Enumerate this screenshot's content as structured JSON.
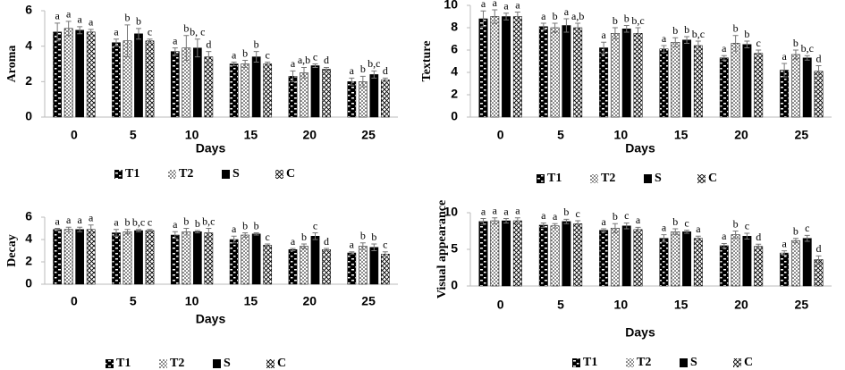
{
  "chart_data": [
    {
      "type": "bar",
      "ylabel": "Aroma",
      "xlabel": "Days",
      "categories": [
        "0",
        "5",
        "10",
        "15",
        "20",
        "25"
      ],
      "ylim": [
        0,
        6
      ],
      "yticks": [
        0,
        2,
        4,
        6
      ],
      "series": [
        {
          "name": "T1",
          "pattern": "brick",
          "values": [
            4.8,
            4.2,
            3.7,
            3.0,
            2.3,
            2.0
          ],
          "errors": [
            0.5,
            0.2,
            0.2,
            0.1,
            0.3,
            0.2
          ],
          "letters": [
            "a",
            "a",
            "a",
            "a",
            "a",
            "a"
          ]
        },
        {
          "name": "T2",
          "pattern": "dots",
          "values": [
            5.0,
            4.3,
            3.9,
            3.0,
            2.5,
            2.0
          ],
          "errors": [
            0.4,
            0.9,
            0.7,
            0.2,
            0.3,
            0.3
          ],
          "letters": [
            "a",
            "b",
            "b",
            "b",
            "a,b",
            "b"
          ]
        },
        {
          "name": "S",
          "pattern": "solid",
          "values": [
            4.9,
            4.7,
            3.9,
            3.4,
            2.9,
            2.4
          ],
          "errors": [
            0.2,
            0.3,
            0.5,
            0.3,
            0.1,
            0.2
          ],
          "letters": [
            "a",
            "b",
            "b, c",
            "b",
            "c",
            "b,c"
          ]
        },
        {
          "name": "C",
          "pattern": "crosshatch",
          "values": [
            4.8,
            4.3,
            3.4,
            3.0,
            2.7,
            2.1
          ],
          "errors": [
            0.15,
            0.1,
            0.3,
            0.1,
            0.1,
            0.1
          ],
          "letters": [
            "a",
            "c",
            "d",
            "c",
            "d",
            "d"
          ]
        }
      ]
    },
    {
      "type": "bar",
      "ylabel": "Texture",
      "xlabel": "Days",
      "categories": [
        "0",
        "5",
        "10",
        "15",
        "20",
        "25"
      ],
      "ylim": [
        0,
        10
      ],
      "yticks": [
        0,
        2,
        4,
        6,
        8,
        10
      ],
      "series": [
        {
          "name": "T1",
          "pattern": "brick",
          "values": [
            8.8,
            8.1,
            6.2,
            6.1,
            5.3,
            4.2
          ],
          "errors": [
            0.7,
            0.3,
            0.5,
            0.3,
            0.2,
            0.6
          ],
          "letters": [
            "a",
            "a",
            "a",
            "a",
            "a",
            "a"
          ]
        },
        {
          "name": "T2",
          "pattern": "dots",
          "values": [
            9.0,
            8.0,
            7.5,
            6.7,
            6.6,
            5.6
          ],
          "errors": [
            0.6,
            0.4,
            0.5,
            0.4,
            0.7,
            0.4
          ],
          "letters": [
            "a",
            "b",
            "b",
            "b",
            "b",
            "b"
          ]
        },
        {
          "name": "S",
          "pattern": "solid",
          "values": [
            9.0,
            8.2,
            7.9,
            6.9,
            6.5,
            5.3
          ],
          "errors": [
            0.3,
            0.6,
            0.3,
            0.3,
            0.3,
            0.2
          ],
          "letters": [
            "a",
            "a",
            "b",
            "b",
            "b",
            "b,c"
          ]
        },
        {
          "name": "C",
          "pattern": "crosshatch",
          "values": [
            9.0,
            8.0,
            7.5,
            6.4,
            5.7,
            4.1
          ],
          "errors": [
            0.4,
            0.4,
            0.5,
            0.4,
            0.3,
            0.5
          ],
          "letters": [
            "a",
            "a,b",
            "b,c",
            "b,c",
            "c",
            "d"
          ]
        }
      ]
    },
    {
      "type": "bar",
      "ylabel": "Decay",
      "xlabel": "Days",
      "categories": [
        "0",
        "5",
        "10",
        "15",
        "20",
        "25"
      ],
      "ylim": [
        0,
        6
      ],
      "yticks": [
        0,
        2,
        4,
        6
      ],
      "series": [
        {
          "name": "T1",
          "pattern": "brick",
          "values": [
            4.9,
            4.6,
            4.4,
            4.0,
            3.1,
            2.8
          ],
          "errors": [
            0.1,
            0.3,
            0.3,
            0.3,
            0.1,
            0.1
          ],
          "letters": [
            "a",
            "a",
            "a",
            "a",
            "a",
            "a"
          ]
        },
        {
          "name": "T2",
          "pattern": "dots",
          "values": [
            4.9,
            4.7,
            4.7,
            4.4,
            3.4,
            3.4
          ],
          "errors": [
            0.2,
            0.2,
            0.3,
            0.2,
            0.2,
            0.3
          ],
          "letters": [
            "a",
            "b",
            "b",
            "b",
            "b",
            "b"
          ]
        },
        {
          "name": "S",
          "pattern": "solid",
          "values": [
            4.9,
            4.8,
            4.7,
            4.5,
            4.3,
            3.3
          ],
          "errors": [
            0.2,
            0.1,
            0.1,
            0.1,
            0.3,
            0.3
          ],
          "letters": [
            "a",
            "b,c",
            "b",
            "b",
            "c",
            "b"
          ]
        },
        {
          "name": "C",
          "pattern": "crosshatch",
          "values": [
            4.9,
            4.8,
            4.6,
            3.5,
            3.1,
            2.7
          ],
          "errors": [
            0.4,
            0.1,
            0.4,
            0.1,
            0.1,
            0.2
          ],
          "letters": [
            "a",
            "c",
            "b,c",
            "c",
            "d",
            "c"
          ]
        }
      ]
    },
    {
      "type": "bar",
      "ylabel": "Visual appearance",
      "xlabel": "Days",
      "categories": [
        "0",
        "5",
        "10",
        "15",
        "20",
        "25"
      ],
      "ylim": [
        0,
        10
      ],
      "yticks": [
        0,
        5,
        10
      ],
      "series": [
        {
          "name": "T1",
          "pattern": "brick",
          "values": [
            8.8,
            8.3,
            7.6,
            6.5,
            5.5,
            4.5
          ],
          "errors": [
            0.4,
            0.3,
            0.2,
            0.5,
            0.3,
            0.3
          ],
          "letters": [
            "a",
            "a",
            "a",
            "a",
            "a",
            "a"
          ]
        },
        {
          "name": "T2",
          "pattern": "dots",
          "values": [
            8.9,
            8.2,
            7.9,
            7.4,
            7.0,
            6.2
          ],
          "errors": [
            0.4,
            0.3,
            0.6,
            0.4,
            0.5,
            0.3
          ],
          "letters": [
            "a",
            "a",
            "b",
            "b",
            "b",
            "b"
          ]
        },
        {
          "name": "S",
          "pattern": "solid",
          "values": [
            8.9,
            8.8,
            8.2,
            7.4,
            6.8,
            6.5
          ],
          "errors": [
            0.3,
            0.3,
            0.4,
            0.2,
            0.4,
            0.4
          ],
          "letters": [
            "a",
            "b",
            "c",
            "c",
            "c",
            "c"
          ]
        },
        {
          "name": "C",
          "pattern": "crosshatch",
          "values": [
            8.9,
            8.5,
            7.7,
            6.5,
            5.4,
            3.6
          ],
          "errors": [
            0.4,
            0.4,
            0.3,
            0.3,
            0.3,
            0.5
          ],
          "letters": [
            "a",
            "c",
            "a",
            "a",
            "d",
            "d"
          ]
        }
      ]
    }
  ]
}
